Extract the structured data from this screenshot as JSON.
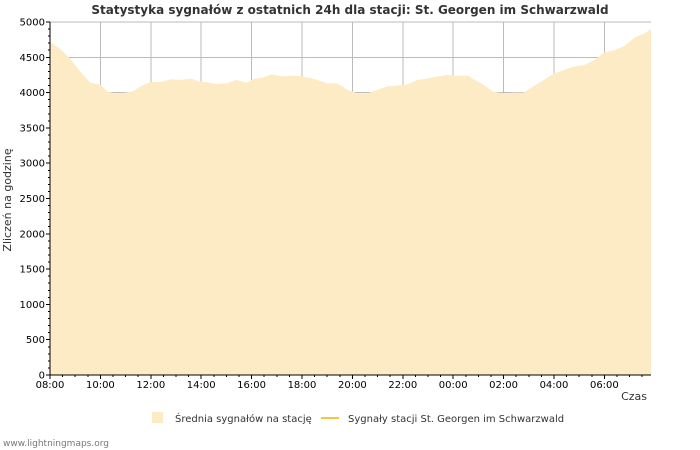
{
  "chart_data": {
    "type": "area",
    "title": "Statystyka sygnałów z ostatnich 24h dla stacji: St. Georgen im Schwarzwald",
    "xlabel": "Czas",
    "ylabel": "Zliczeń na godzinę",
    "ylim": [
      0,
      5000
    ],
    "xlim_hours": [
      0,
      23.85
    ],
    "y_ticks": [
      0,
      500,
      1000,
      1500,
      2000,
      2500,
      3000,
      3500,
      4000,
      4500,
      5000
    ],
    "x_ticks": [
      {
        "hour": 0,
        "label": "08:00"
      },
      {
        "hour": 2,
        "label": "10:00"
      },
      {
        "hour": 4,
        "label": "12:00"
      },
      {
        "hour": 6,
        "label": "14:00"
      },
      {
        "hour": 8,
        "label": "16:00"
      },
      {
        "hour": 10,
        "label": "18:00"
      },
      {
        "hour": 12,
        "label": "20:00"
      },
      {
        "hour": 14,
        "label": "22:00"
      },
      {
        "hour": 16,
        "label": "00:00"
      },
      {
        "hour": 18,
        "label": "02:00"
      },
      {
        "hour": 20,
        "label": "04:00"
      },
      {
        "hour": 22,
        "label": "06:00"
      }
    ],
    "grid": true,
    "legend_position": "bottom",
    "series": [
      {
        "name": "Średnia sygnałów na stację",
        "kind": "area",
        "color": "#fdebc6",
        "x": [
          0,
          0.4,
          0.8,
          1.2,
          1.6,
          2.0,
          2.3,
          2.6,
          3.0,
          3.3,
          3.6,
          4.0,
          4.4,
          4.8,
          5.2,
          5.6,
          5.9,
          6.2,
          6.6,
          7.0,
          7.4,
          7.8,
          8.1,
          8.4,
          8.8,
          9.2,
          9.6,
          10.0,
          10.3,
          10.6,
          11.0,
          11.4,
          11.8,
          12.2,
          12.6,
          13.0,
          13.4,
          13.8,
          14.2,
          14.6,
          15.0,
          15.4,
          15.8,
          16.2,
          16.6,
          16.9,
          17.2,
          17.6,
          18.0,
          18.4,
          18.8,
          19.2,
          19.6,
          20.0,
          20.4,
          20.8,
          21.2,
          21.6,
          22.0,
          22.4,
          22.8,
          23.2,
          23.6,
          23.85
        ],
        "values": [
          4720,
          4620,
          4480,
          4300,
          4140,
          4110,
          4010,
          3990,
          4000,
          4020,
          4090,
          4150,
          4150,
          4190,
          4180,
          4200,
          4160,
          4150,
          4120,
          4130,
          4180,
          4140,
          4200,
          4210,
          4260,
          4230,
          4240,
          4230,
          4210,
          4180,
          4130,
          4130,
          4040,
          3990,
          3990,
          4040,
          4090,
          4100,
          4120,
          4180,
          4200,
          4230,
          4250,
          4240,
          4240,
          4170,
          4110,
          4010,
          3990,
          4000,
          4000,
          4090,
          4180,
          4270,
          4320,
          4370,
          4390,
          4460,
          4570,
          4600,
          4660,
          4780,
          4840,
          4900
        ]
      },
      {
        "name": "Sygnały stacji St. Georgen im Schwarzwald",
        "kind": "line",
        "color": "#f5c445",
        "x": [],
        "values": []
      }
    ]
  },
  "credit": "www.lightningmaps.org",
  "colors": {
    "area_fill": "#fdebc6",
    "station_line": "#f5c445",
    "grid": "#bbbbbb",
    "axis": "#000000"
  }
}
